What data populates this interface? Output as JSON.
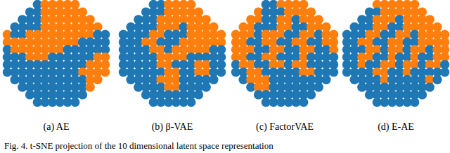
{
  "chart_data": [
    {
      "type": "scatter",
      "title": "(a) AE",
      "colors": [
        "#1f77b4",
        "#ff7f0e"
      ],
      "tick_labels": false,
      "cells": [
        [
          0,
          0,
          0,
          0,
          1,
          2,
          2,
          2,
          2,
          2,
          0,
          0,
          0,
          0
        ],
        [
          0,
          0,
          0,
          1,
          1,
          2,
          2,
          2,
          2,
          2,
          2,
          0,
          0,
          0
        ],
        [
          0,
          0,
          1,
          1,
          1,
          2,
          2,
          2,
          2,
          2,
          2,
          2,
          0,
          0
        ],
        [
          0,
          1,
          1,
          1,
          1,
          2,
          2,
          2,
          2,
          2,
          2,
          2,
          2,
          0
        ],
        [
          2,
          1,
          1,
          2,
          2,
          2,
          2,
          2,
          2,
          2,
          2,
          2,
          1,
          1
        ],
        [
          2,
          2,
          2,
          2,
          2,
          2,
          2,
          2,
          2,
          2,
          1,
          1,
          1,
          1
        ],
        [
          1,
          2,
          2,
          2,
          2,
          2,
          2,
          2,
          1,
          1,
          1,
          1,
          1,
          1
        ],
        [
          1,
          1,
          1,
          2,
          2,
          2,
          1,
          1,
          1,
          1,
          1,
          1,
          2,
          2
        ],
        [
          1,
          1,
          1,
          1,
          1,
          1,
          1,
          1,
          1,
          1,
          1,
          2,
          2,
          2
        ],
        [
          1,
          1,
          1,
          1,
          1,
          1,
          1,
          1,
          1,
          1,
          2,
          2,
          2,
          2
        ],
        [
          0,
          1,
          1,
          1,
          1,
          1,
          1,
          1,
          1,
          1,
          1,
          2,
          2,
          0
        ],
        [
          0,
          0,
          1,
          1,
          1,
          1,
          1,
          1,
          1,
          1,
          1,
          2,
          0,
          0
        ],
        [
          0,
          0,
          0,
          1,
          1,
          1,
          1,
          1,
          1,
          1,
          1,
          0,
          0,
          0
        ],
        [
          0,
          0,
          0,
          0,
          1,
          1,
          1,
          1,
          1,
          1,
          0,
          0,
          0,
          0
        ]
      ]
    },
    {
      "type": "scatter",
      "title": "(b) β-VAE",
      "colors": [
        "#1f77b4",
        "#ff7f0e"
      ],
      "tick_labels": false,
      "cells": [
        [
          0,
          0,
          0,
          0,
          1,
          1,
          2,
          2,
          2,
          2,
          0,
          0,
          0,
          0
        ],
        [
          0,
          0,
          0,
          1,
          1,
          1,
          2,
          2,
          2,
          2,
          2,
          0,
          0,
          0
        ],
        [
          0,
          0,
          1,
          1,
          1,
          2,
          2,
          2,
          2,
          2,
          2,
          2,
          0,
          0
        ],
        [
          0,
          1,
          1,
          1,
          1,
          2,
          2,
          2,
          1,
          2,
          2,
          2,
          2,
          0
        ],
        [
          1,
          1,
          1,
          1,
          2,
          2,
          1,
          1,
          1,
          2,
          2,
          2,
          2,
          2
        ],
        [
          1,
          1,
          1,
          2,
          2,
          1,
          1,
          1,
          2,
          2,
          2,
          2,
          2,
          2
        ],
        [
          1,
          1,
          1,
          1,
          2,
          2,
          1,
          2,
          2,
          2,
          2,
          2,
          1,
          1
        ],
        [
          1,
          1,
          1,
          1,
          1,
          2,
          2,
          2,
          2,
          1,
          1,
          1,
          1,
          1
        ],
        [
          1,
          1,
          1,
          1,
          1,
          2,
          2,
          1,
          1,
          1,
          2,
          2,
          1,
          1
        ],
        [
          1,
          1,
          1,
          1,
          1,
          1,
          2,
          2,
          1,
          1,
          2,
          2,
          1,
          1
        ],
        [
          0,
          1,
          1,
          1,
          1,
          2,
          2,
          2,
          1,
          1,
          1,
          1,
          1,
          0
        ],
        [
          0,
          0,
          1,
          1,
          1,
          1,
          2,
          2,
          1,
          1,
          1,
          1,
          0,
          0
        ],
        [
          0,
          0,
          0,
          1,
          1,
          1,
          1,
          1,
          1,
          1,
          1,
          0,
          0,
          0
        ],
        [
          0,
          0,
          0,
          0,
          1,
          1,
          1,
          1,
          1,
          1,
          0,
          0,
          0,
          0
        ]
      ]
    },
    {
      "type": "scatter",
      "title": "(c) FactorVAE",
      "colors": [
        "#1f77b4",
        "#ff7f0e"
      ],
      "tick_labels": false,
      "cells": [
        [
          0,
          0,
          0,
          0,
          1,
          1,
          2,
          2,
          2,
          2,
          0,
          0,
          0,
          0
        ],
        [
          0,
          0,
          0,
          2,
          1,
          1,
          1,
          2,
          2,
          2,
          2,
          0,
          0,
          0
        ],
        [
          0,
          0,
          2,
          2,
          1,
          1,
          2,
          2,
          1,
          2,
          2,
          2,
          0,
          0
        ],
        [
          0,
          2,
          2,
          1,
          1,
          1,
          2,
          2,
          1,
          1,
          2,
          2,
          2,
          0
        ],
        [
          2,
          2,
          2,
          1,
          2,
          2,
          2,
          1,
          1,
          2,
          2,
          1,
          2,
          2
        ],
        [
          2,
          2,
          1,
          1,
          2,
          2,
          1,
          1,
          2,
          2,
          1,
          1,
          2,
          2
        ],
        [
          2,
          2,
          2,
          1,
          1,
          2,
          2,
          1,
          1,
          2,
          2,
          1,
          1,
          2
        ],
        [
          2,
          2,
          1,
          1,
          2,
          2,
          1,
          1,
          1,
          2,
          1,
          1,
          1,
          1
        ],
        [
          1,
          2,
          2,
          1,
          1,
          2,
          2,
          1,
          2,
          2,
          1,
          1,
          1,
          1
        ],
        [
          1,
          1,
          2,
          2,
          1,
          1,
          1,
          1,
          1,
          2,
          2,
          1,
          1,
          1
        ],
        [
          0,
          1,
          2,
          2,
          2,
          1,
          1,
          1,
          1,
          1,
          1,
          1,
          1,
          0
        ],
        [
          0,
          0,
          1,
          2,
          2,
          1,
          1,
          1,
          1,
          1,
          1,
          1,
          0,
          0
        ],
        [
          0,
          0,
          0,
          1,
          1,
          1,
          1,
          1,
          1,
          1,
          1,
          0,
          0,
          0
        ],
        [
          0,
          0,
          0,
          0,
          1,
          1,
          1,
          1,
          1,
          1,
          0,
          0,
          0,
          0
        ]
      ]
    },
    {
      "type": "scatter",
      "title": "(d) E-AE",
      "colors": [
        "#1f77b4",
        "#ff7f0e"
      ],
      "tick_labels": false,
      "cells": [
        [
          0,
          0,
          0,
          0,
          2,
          2,
          2,
          2,
          2,
          2,
          0,
          0,
          0,
          0
        ],
        [
          0,
          0,
          0,
          1,
          1,
          2,
          2,
          2,
          2,
          2,
          2,
          0,
          0,
          0
        ],
        [
          0,
          0,
          1,
          1,
          2,
          2,
          2,
          1,
          2,
          2,
          2,
          2,
          0,
          0
        ],
        [
          0,
          1,
          1,
          1,
          2,
          2,
          1,
          1,
          2,
          2,
          2,
          2,
          2,
          0
        ],
        [
          1,
          1,
          1,
          2,
          2,
          1,
          1,
          2,
          2,
          1,
          2,
          2,
          2,
          2
        ],
        [
          1,
          1,
          2,
          2,
          1,
          1,
          2,
          2,
          1,
          1,
          2,
          2,
          2,
          2
        ],
        [
          1,
          1,
          1,
          2,
          2,
          1,
          2,
          2,
          1,
          2,
          2,
          1,
          2,
          2
        ],
        [
          1,
          1,
          2,
          2,
          1,
          1,
          2,
          1,
          1,
          2,
          1,
          1,
          2,
          2
        ],
        [
          1,
          1,
          2,
          1,
          1,
          2,
          2,
          1,
          2,
          2,
          1,
          2,
          2,
          1
        ],
        [
          1,
          1,
          1,
          1,
          2,
          2,
          1,
          1,
          2,
          1,
          1,
          1,
          1,
          1
        ],
        [
          0,
          1,
          1,
          1,
          1,
          2,
          1,
          1,
          1,
          1,
          1,
          2,
          1,
          0
        ],
        [
          0,
          0,
          1,
          1,
          1,
          1,
          1,
          1,
          1,
          1,
          1,
          1,
          0,
          0
        ],
        [
          0,
          0,
          0,
          1,
          1,
          1,
          1,
          1,
          1,
          1,
          1,
          0,
          0,
          0
        ],
        [
          0,
          0,
          0,
          0,
          1,
          1,
          1,
          1,
          1,
          1,
          0,
          0,
          0,
          0
        ]
      ]
    }
  ],
  "caption": "Fig. 4.  t-SNE projection of the 10 dimensional latent space representation"
}
